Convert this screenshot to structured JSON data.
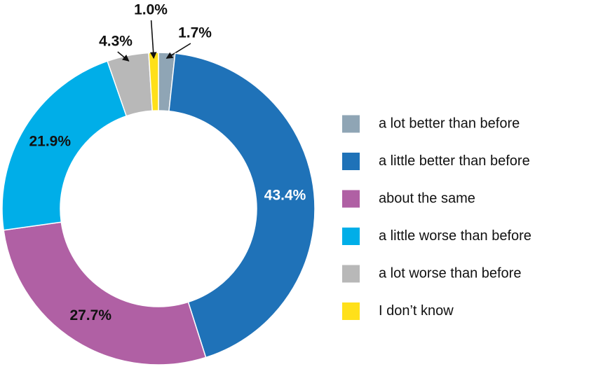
{
  "chart_data": {
    "type": "donut",
    "categories": [
      "a lot better than before",
      "a little better than before",
      "about the same",
      "a little worse than before",
      "a lot worse than before",
      "I don’t know"
    ],
    "values": [
      1.7,
      43.4,
      27.7,
      21.9,
      4.3,
      1.0
    ],
    "value_labels": [
      "1.7%",
      "43.4%",
      "27.7%",
      "21.9%",
      "4.3%",
      "1.0%"
    ],
    "colors": [
      "#8fa5b5",
      "#1f72b8",
      "#b060a4",
      "#00aee8",
      "#b8b8b8",
      "#ffe01a"
    ],
    "legend": "right"
  }
}
